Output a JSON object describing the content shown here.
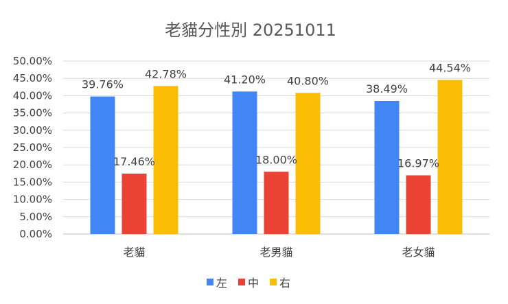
{
  "chart_data": {
    "type": "bar",
    "title": "老貓分性別 20251011",
    "categories": [
      "老貓",
      "老男貓",
      "老女貓"
    ],
    "series": [
      {
        "name": "左",
        "color": "#4285f4",
        "values": [
          39.76,
          41.2,
          38.49
        ],
        "labels": [
          "39.76%",
          "41.20%",
          "38.49%"
        ]
      },
      {
        "name": "中",
        "color": "#ea4335",
        "values": [
          17.46,
          18.0,
          16.97
        ],
        "labels": [
          "17.46%",
          "18.00%",
          "16.97%"
        ]
      },
      {
        "name": "右",
        "color": "#fbbc04",
        "values": [
          42.78,
          40.8,
          44.54
        ],
        "labels": [
          "42.78%",
          "40.80%",
          "44.54%"
        ]
      }
    ],
    "ylim": [
      0,
      50
    ],
    "yticks": [
      {
        "value": 0,
        "label": "0.00%"
      },
      {
        "value": 5,
        "label": "5.00%"
      },
      {
        "value": 10,
        "label": "10.00%"
      },
      {
        "value": 15,
        "label": "15.00%"
      },
      {
        "value": 20,
        "label": "20.00%"
      },
      {
        "value": 25,
        "label": "25.00%"
      },
      {
        "value": 30,
        "label": "30.00%"
      },
      {
        "value": 35,
        "label": "35.00%"
      },
      {
        "value": 40,
        "label": "40.00%"
      },
      {
        "value": 45,
        "label": "45.00%"
      },
      {
        "value": 50,
        "label": "50.00%"
      }
    ],
    "grid": true,
    "legend_position": "bottom",
    "colors": {
      "grid": "#d9d9d9",
      "axis": "#bfbfbf",
      "text": "#404040",
      "title": "#595959"
    }
  }
}
